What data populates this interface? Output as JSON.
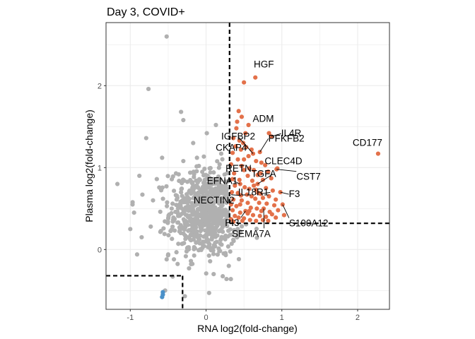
{
  "chart_data": {
    "type": "scatter",
    "title": "Day 3, COVID+",
    "xlabel": "RNA log2(fold-change)",
    "ylabel": "Plasma log2(fold-change)",
    "xlim": [
      -1.32,
      2.42
    ],
    "ylim": [
      -0.73,
      2.77
    ],
    "xticks": [
      -1,
      0,
      1,
      2
    ],
    "yticks": [
      0,
      1,
      2
    ],
    "grid": true,
    "thresholds": {
      "x_pos": 0.31,
      "y_pos": 0.32,
      "x_neg": -0.31,
      "y_neg": -0.32
    },
    "colors": {
      "background": "#ffffff",
      "grid": "#ebebeb",
      "border": "#333333",
      "neutral": "#b0b0b0",
      "up": "#e3714a",
      "down": "#4b91c9",
      "threshold_line": "#000000"
    },
    "labeled_points": [
      {
        "label": "HGF",
        "x": 0.65,
        "y": 2.1
      },
      {
        "label": "ADM",
        "x": 0.83,
        "y": 1.42
      },
      {
        "label": "IL4R",
        "x": 0.86,
        "y": 1.38
      },
      {
        "label": "IGFBP2",
        "x": 0.62,
        "y": 1.17
      },
      {
        "label": "PFKFB2",
        "x": 0.71,
        "y": 1.19
      },
      {
        "label": "CKAP4",
        "x": 0.5,
        "y": 1.1
      },
      {
        "label": "CD177",
        "x": 2.27,
        "y": 1.17
      },
      {
        "label": "RETN",
        "x": 0.5,
        "y": 0.97
      },
      {
        "label": "CLEC4D",
        "x": 0.94,
        "y": 0.99
      },
      {
        "label": "CST7",
        "x": 0.93,
        "y": 0.98
      },
      {
        "label": "EFNA1",
        "x": 0.45,
        "y": 0.8
      },
      {
        "label": "TGFA",
        "x": 0.68,
        "y": 0.8
      },
      {
        "label": "NECTIN2",
        "x": 0.46,
        "y": 0.66
      },
      {
        "label": "IL18R1",
        "x": 0.72,
        "y": 0.68
      },
      {
        "label": "F3",
        "x": 0.98,
        "y": 0.7
      },
      {
        "label": "S100A12",
        "x": 1.01,
        "y": 0.55
      },
      {
        "label": "PI3",
        "x": 0.52,
        "y": 0.47
      },
      {
        "label": "SEMA7A",
        "x": 0.76,
        "y": 0.5
      }
    ],
    "up_points": [
      [
        0.5,
        2.04
      ],
      [
        0.43,
        1.69
      ],
      [
        0.47,
        1.62
      ],
      [
        0.41,
        1.56
      ],
      [
        0.56,
        1.52
      ],
      [
        0.4,
        1.48
      ],
      [
        0.52,
        1.42
      ],
      [
        0.36,
        1.36
      ],
      [
        0.44,
        1.33
      ],
      [
        0.49,
        1.3
      ],
      [
        0.39,
        1.26
      ],
      [
        0.46,
        1.22
      ],
      [
        0.53,
        1.25
      ],
      [
        0.6,
        1.22
      ],
      [
        0.35,
        1.18
      ],
      [
        0.56,
        1.14
      ],
      [
        0.42,
        1.1
      ],
      [
        0.66,
        1.08
      ],
      [
        0.73,
        1.06
      ],
      [
        0.78,
        1.03
      ],
      [
        0.33,
        1.04
      ],
      [
        0.47,
        1.02
      ],
      [
        0.57,
        0.99
      ],
      [
        0.63,
        0.97
      ],
      [
        0.82,
        0.95
      ],
      [
        0.37,
        0.93
      ],
      [
        0.55,
        0.9
      ],
      [
        0.68,
        0.91
      ],
      [
        0.35,
        0.86
      ],
      [
        0.44,
        0.85
      ],
      [
        0.61,
        0.84
      ],
      [
        0.75,
        0.85
      ],
      [
        0.86,
        0.87
      ],
      [
        0.38,
        0.78
      ],
      [
        0.51,
        0.76
      ],
      [
        0.57,
        0.74
      ],
      [
        0.66,
        0.73
      ],
      [
        0.79,
        0.75
      ],
      [
        0.88,
        0.72
      ],
      [
        0.34,
        0.7
      ],
      [
        0.42,
        0.69
      ],
      [
        0.54,
        0.67
      ],
      [
        0.6,
        0.65
      ],
      [
        0.65,
        0.62
      ],
      [
        0.75,
        0.63
      ],
      [
        0.83,
        0.65
      ],
      [
        0.92,
        0.61
      ],
      [
        0.36,
        0.61
      ],
      [
        0.47,
        0.6
      ],
      [
        0.55,
        0.57
      ],
      [
        0.7,
        0.57
      ],
      [
        0.8,
        0.56
      ],
      [
        0.9,
        0.54
      ],
      [
        0.33,
        0.55
      ],
      [
        0.4,
        0.53
      ],
      [
        0.59,
        0.51
      ],
      [
        0.67,
        0.5
      ],
      [
        0.73,
        0.47
      ],
      [
        0.84,
        0.46
      ],
      [
        0.95,
        0.48
      ],
      [
        0.35,
        0.48
      ],
      [
        0.45,
        0.45
      ],
      [
        0.55,
        0.44
      ],
      [
        0.62,
        0.42
      ],
      [
        0.71,
        0.41
      ],
      [
        0.79,
        0.4
      ],
      [
        0.87,
        0.43
      ],
      [
        0.38,
        0.41
      ],
      [
        0.43,
        0.39
      ],
      [
        0.5,
        0.38
      ],
      [
        0.58,
        0.36
      ],
      [
        0.66,
        0.35
      ],
      [
        0.75,
        0.36
      ],
      [
        0.82,
        0.35
      ],
      [
        0.33,
        0.37
      ],
      [
        0.48,
        0.35
      ],
      [
        0.92,
        0.39
      ],
      [
        1.03,
        0.42
      ],
      [
        0.36,
        0.34
      ],
      [
        0.57,
        0.47
      ],
      [
        0.45,
        0.55
      ],
      [
        0.69,
        0.69
      ],
      [
        0.63,
        0.78
      ],
      [
        0.72,
        0.93
      ]
    ],
    "down_points": [
      [
        -0.57,
        -0.52
      ],
      [
        -0.57,
        -0.55
      ],
      [
        -0.58,
        -0.58
      ]
    ],
    "neutral_points": [
      [
        -0.52,
        2.6
      ],
      [
        -0.76,
        1.96
      ],
      [
        -0.33,
        1.68
      ],
      [
        -0.3,
        1.58
      ],
      [
        -0.79,
        1.36
      ],
      [
        -0.3,
        1.08
      ],
      [
        -1.17,
        0.8
      ],
      [
        -0.54,
        -0.5
      ],
      [
        0.04,
        -0.53
      ],
      [
        -0.28,
        -0.57
      ],
      [
        0.13,
        1.52
      ],
      [
        0.01,
        1.42
      ],
      [
        -0.17,
        1.3
      ],
      [
        0.2,
        1.17
      ],
      [
        -0.12,
        1.12
      ],
      [
        -0.44,
        -0.33
      ],
      [
        0.27,
        -0.36
      ],
      [
        -0.88,
        0.9
      ],
      [
        -0.95,
        0.45
      ],
      [
        -0.97,
        0.55
      ],
      [
        -0.85,
        0.15
      ],
      [
        -0.7,
        0.6
      ],
      [
        -0.84,
        0.67
      ],
      [
        -0.58,
        1.12
      ],
      [
        -0.65,
        0.86
      ],
      [
        0.1,
        -0.3
      ],
      [
        -0.91,
        -0.06
      ],
      [
        -0.2,
        -0.14
      ],
      [
        -1.0,
        0.25
      ],
      [
        0.3,
        -0.2
      ],
      [
        -0.52,
        -0.12
      ],
      [
        -0.73,
        0.28
      ]
    ],
    "neutral_cloud": {
      "count": 760,
      "center": [
        0.0,
        0.45
      ],
      "sd": [
        0.24,
        0.27
      ]
    }
  }
}
